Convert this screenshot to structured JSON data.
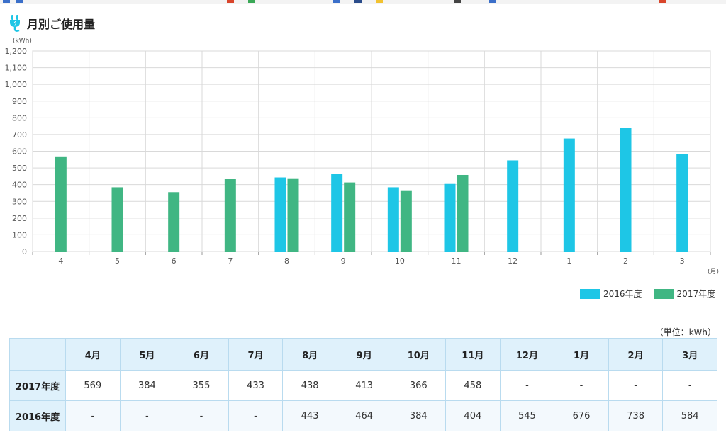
{
  "header": {
    "title": "月別ご使用量",
    "icon": "plug-icon"
  },
  "colors": {
    "fy2016": "#1ec6e6",
    "fy2017": "#40b683",
    "grid": "#d9d9d9"
  },
  "chart_data": {
    "type": "bar",
    "ylabel": "(kWh)",
    "xlabel": "(月)",
    "ylim": [
      0,
      1200
    ],
    "yticks": [
      "0",
      "100",
      "200",
      "300",
      "400",
      "500",
      "600",
      "700",
      "800",
      "900",
      "1,000",
      "1,100",
      "1,200"
    ],
    "categories": [
      "4",
      "5",
      "6",
      "7",
      "8",
      "9",
      "10",
      "11",
      "12",
      "1",
      "2",
      "3"
    ],
    "series": [
      {
        "name": "2016年度",
        "values": [
          null,
          null,
          null,
          null,
          443,
          464,
          384,
          404,
          545,
          676,
          738,
          584
        ]
      },
      {
        "name": "2017年度",
        "values": [
          569,
          384,
          355,
          433,
          438,
          413,
          366,
          458,
          null,
          null,
          null,
          null
        ]
      }
    ],
    "grid": true,
    "legend": "bottom-right"
  },
  "table": {
    "unit": "（単位：kWh）",
    "headers": [
      "4月",
      "5月",
      "6月",
      "7月",
      "8月",
      "9月",
      "10月",
      "11月",
      "12月",
      "1月",
      "2月",
      "3月"
    ],
    "rows": [
      {
        "label": "2017年度",
        "values": [
          "569",
          "384",
          "355",
          "433",
          "438",
          "413",
          "366",
          "458",
          "-",
          "-",
          "-",
          "-"
        ]
      },
      {
        "label": "2016年度",
        "values": [
          "-",
          "-",
          "-",
          "-",
          "443",
          "464",
          "384",
          "404",
          "545",
          "676",
          "738",
          "584"
        ]
      }
    ]
  }
}
